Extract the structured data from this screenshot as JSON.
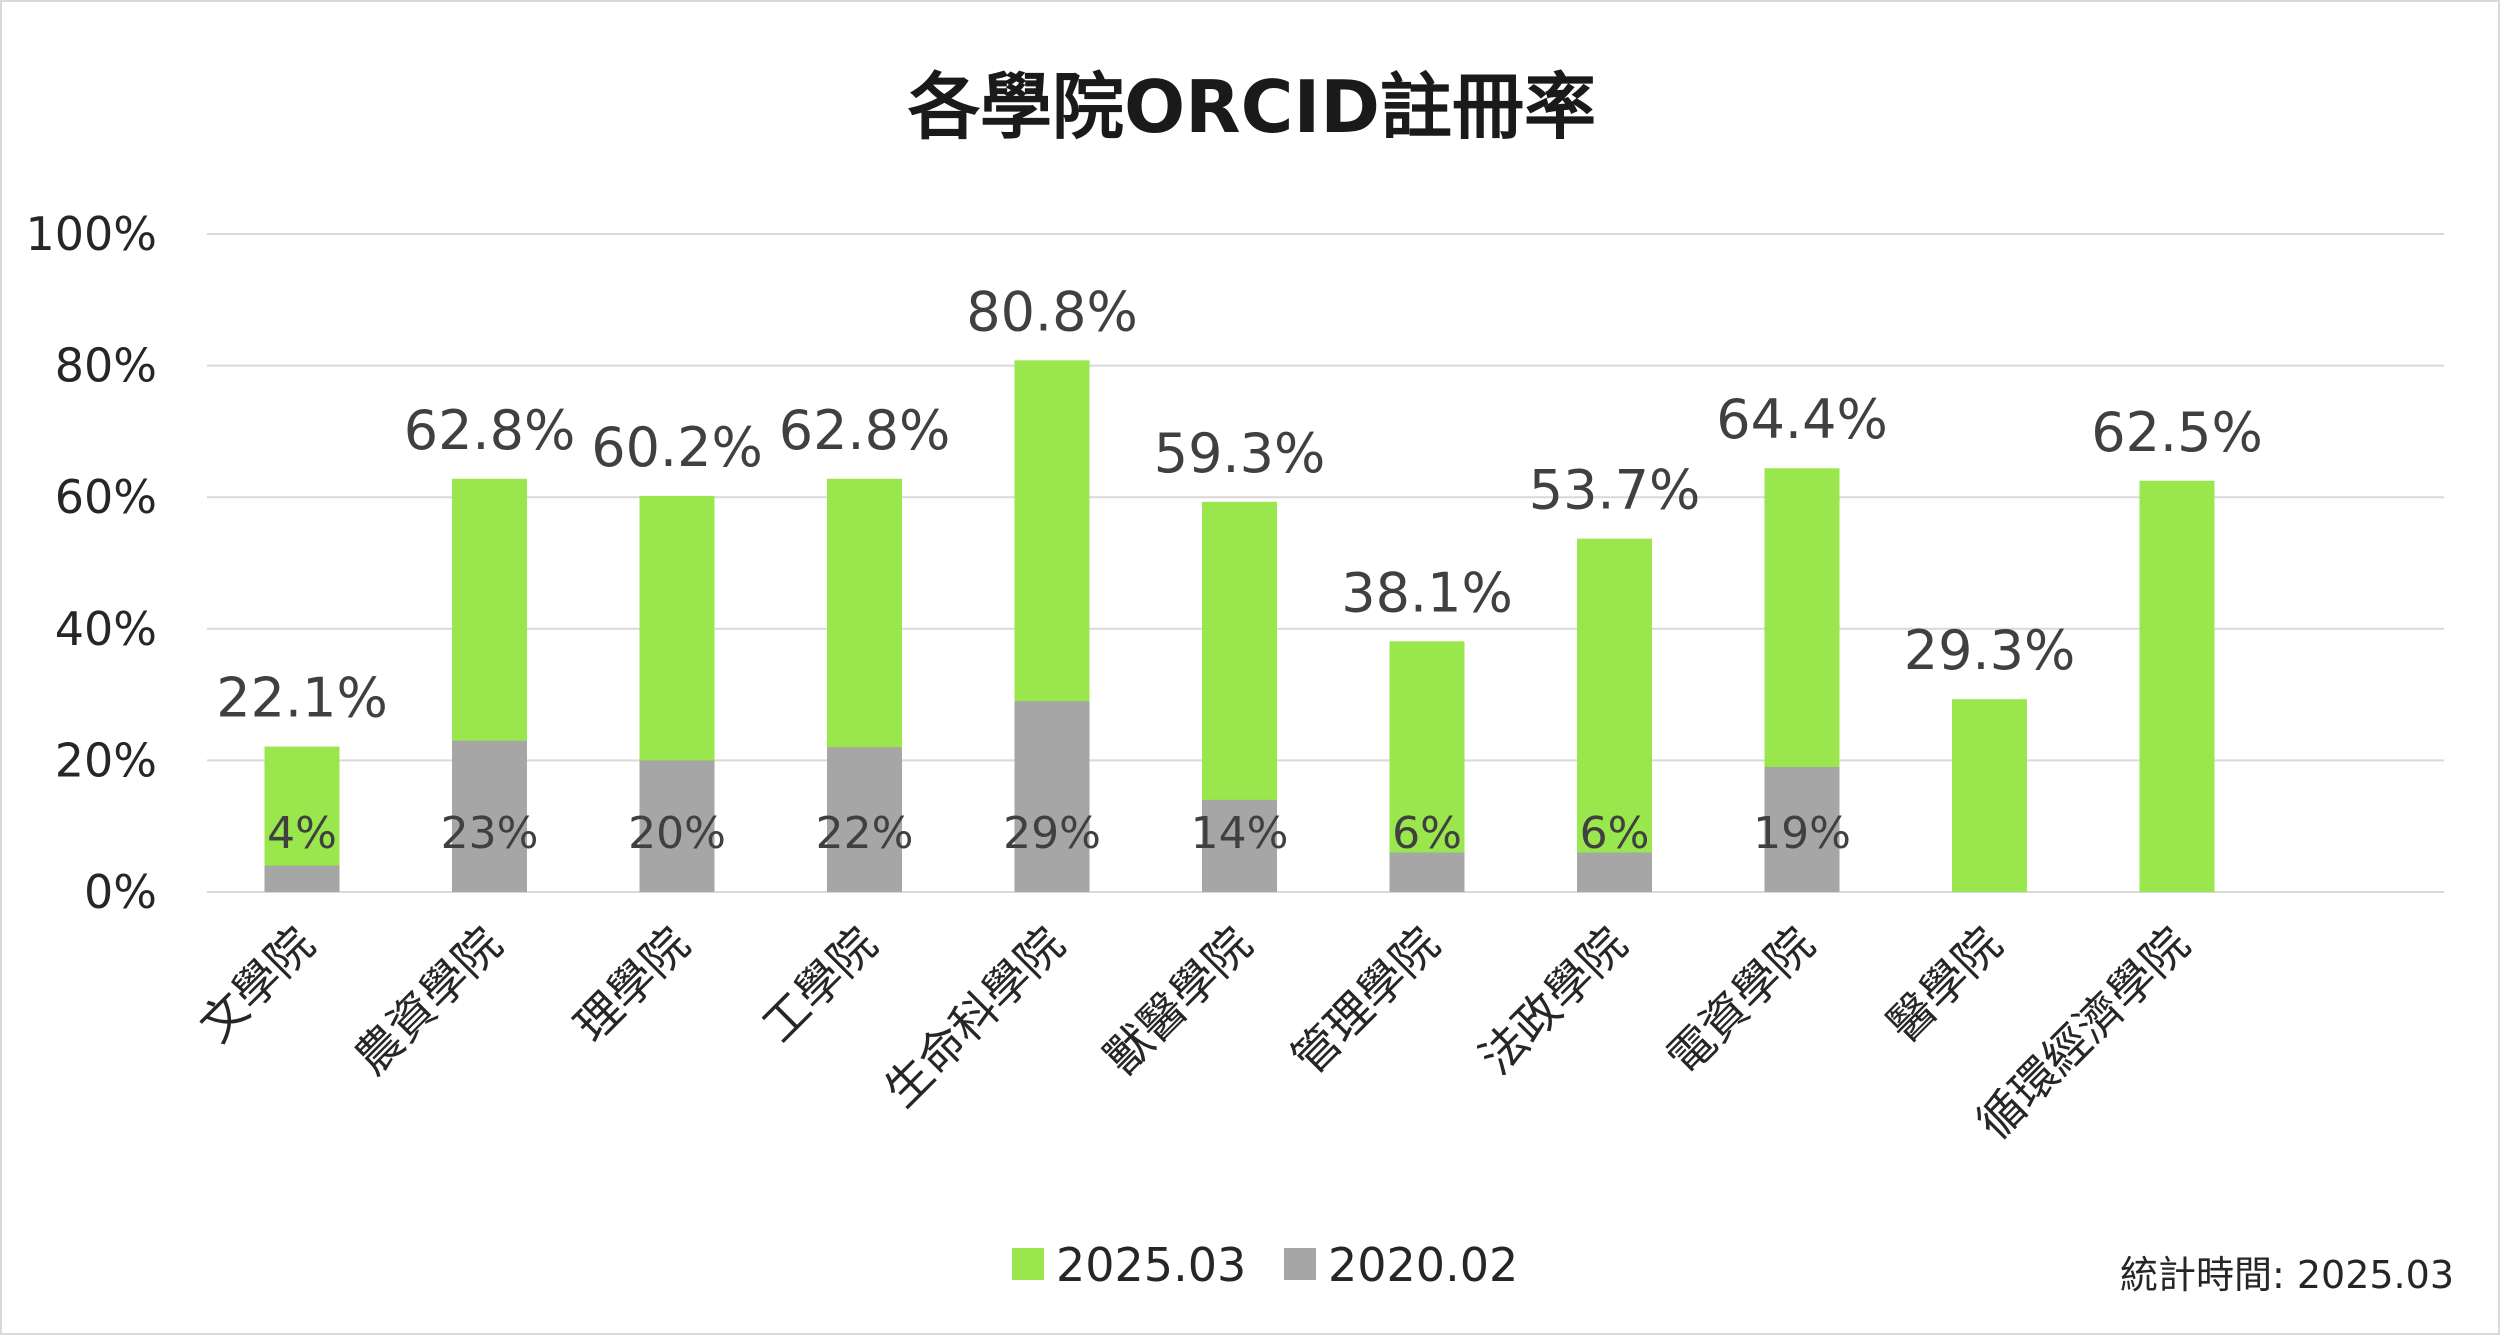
{
  "chart_data": {
    "type": "bar",
    "stacked": false,
    "overlap": true,
    "title": "各學院ORCID註冊率",
    "xlabel": "",
    "ylabel": "",
    "ylim": [
      0,
      100
    ],
    "yticks": [
      0,
      20,
      40,
      60,
      80,
      100
    ],
    "ytick_format": "{v}%",
    "grid": true,
    "legend_position": "bottom",
    "categories": [
      "文學院",
      "農資學院",
      "理學院",
      "工學院",
      "生命科學院",
      "獸醫學院",
      "管理學院",
      "法政學院",
      "電資學院",
      "醫學院",
      "循環經濟學院"
    ],
    "series": [
      {
        "name": "2025.03",
        "color": "#99e64d",
        "values": [
          22.1,
          62.8,
          60.2,
          62.8,
          80.8,
          59.3,
          38.1,
          53.7,
          64.4,
          29.3,
          62.5
        ],
        "labels": [
          "22.1%",
          "62.8%",
          "60.2%",
          "62.8%",
          "80.8%",
          "59.3%",
          "38.1%",
          "53.7%",
          "64.4%",
          "29.3%",
          "62.5%"
        ]
      },
      {
        "name": "2020.02",
        "color": "#a6a6a6",
        "values": [
          4,
          23,
          20,
          22,
          29,
          14,
          6,
          6,
          19,
          null,
          null
        ],
        "labels": [
          "4%",
          "23%",
          "20%",
          "22%",
          "29%",
          "14%",
          "6%",
          "6%",
          "19%",
          "",
          ""
        ]
      }
    ],
    "footnote": "統計時間: 2025.03"
  }
}
